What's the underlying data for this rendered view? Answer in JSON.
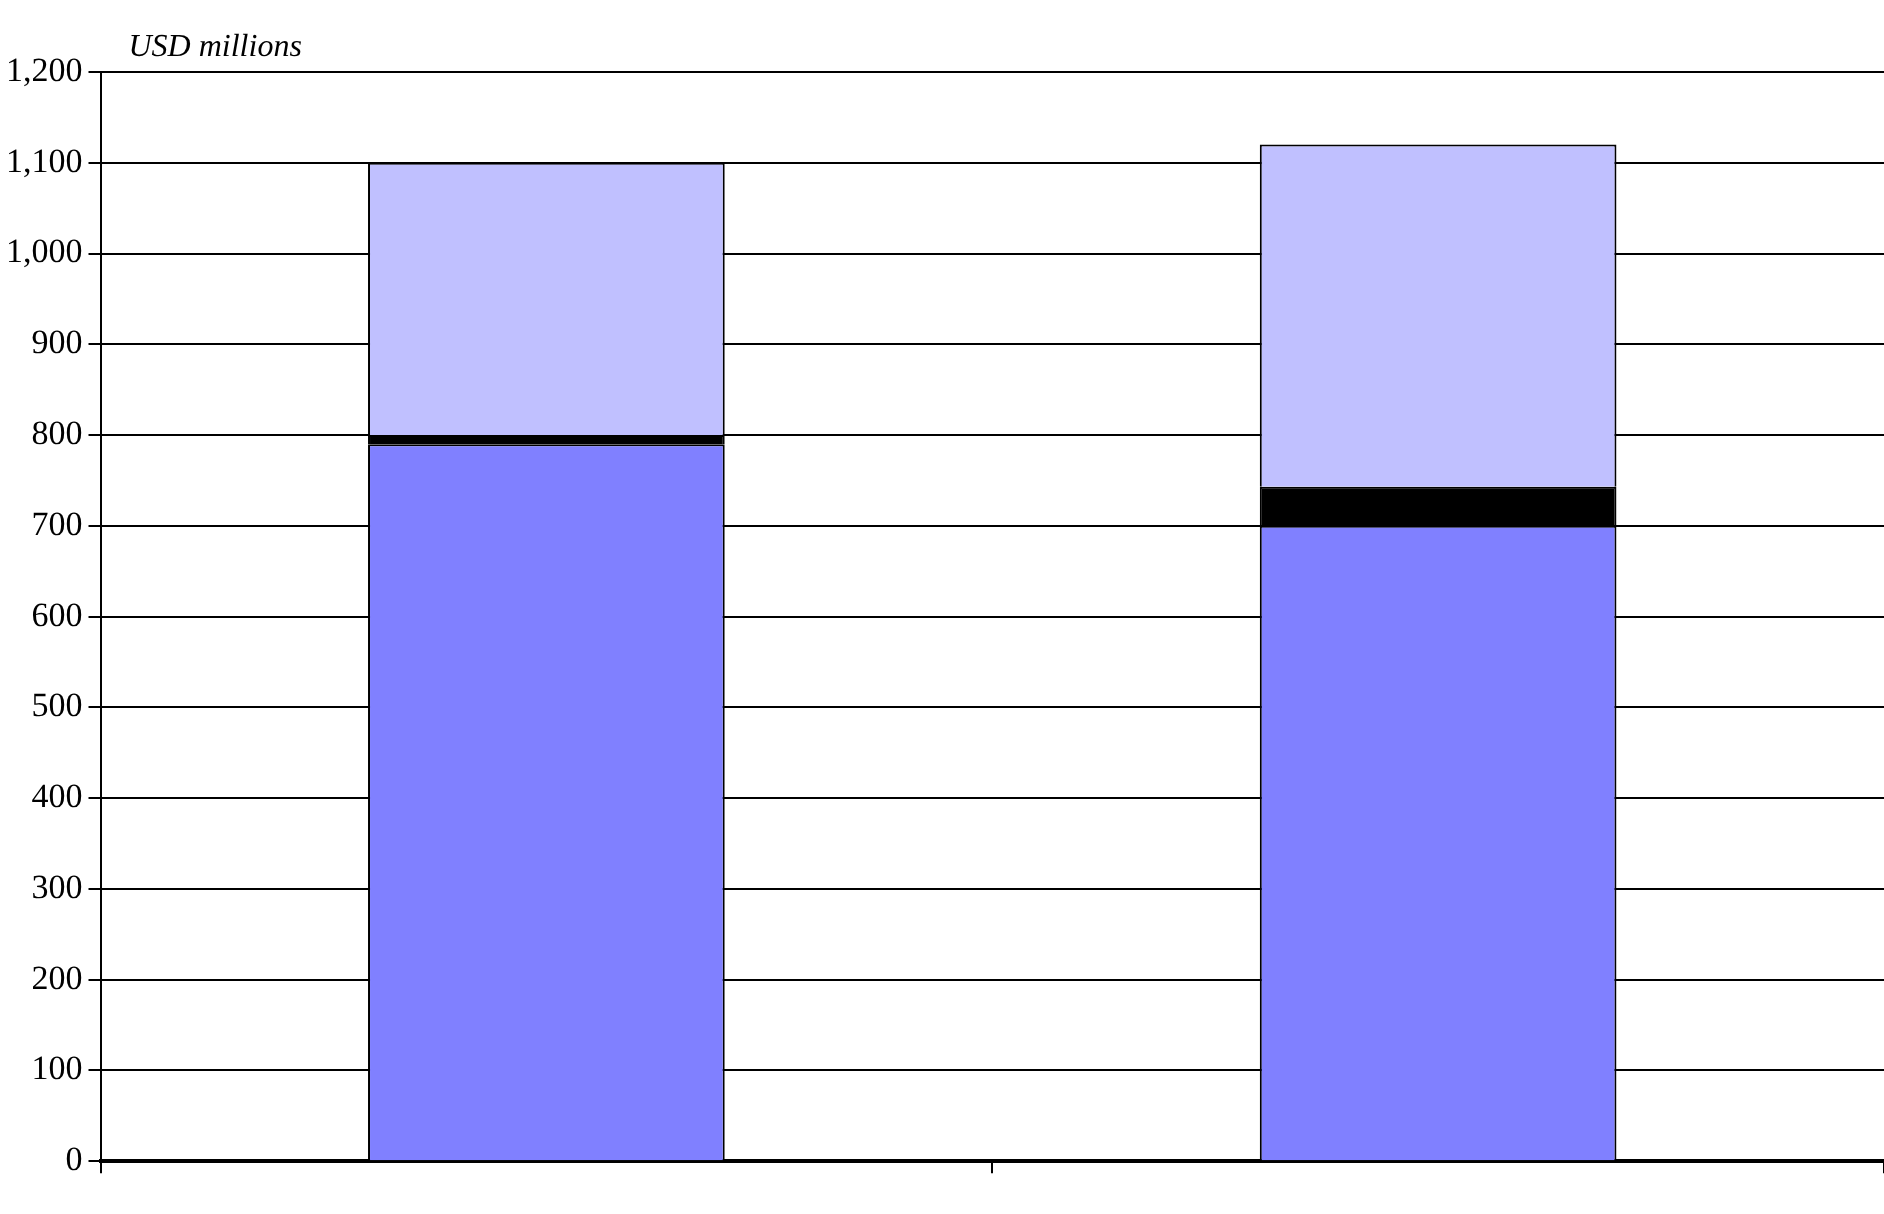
{
  "chart_data": {
    "type": "bar",
    "ylabel": "USD millions",
    "categories": [
      null,
      null
    ],
    "stacked": true,
    "series": [
      {
        "color": "#8080ff",
        "values": [
          790,
          700
        ]
      },
      {
        "color": "#000000",
        "values": [
          10,
          43
        ]
      },
      {
        "color": "#c0c0ff",
        "values": [
          300,
          377
        ]
      }
    ],
    "ylim": [
      0,
      1200
    ],
    "yticks": [
      0,
      {
        "value": 100,
        "label": "100"
      },
      {
        "value": 200,
        "label": "200"
      },
      {
        "value": 300,
        "label": "300"
      },
      {
        "value": 400,
        "label": "400"
      },
      {
        "value": 500,
        "label": "500"
      },
      {
        "value": 600,
        "label": "600"
      },
      {
        "value": 700,
        "label": "700"
      },
      {
        "value": 800,
        "label": "800"
      },
      {
        "value": 900,
        "label": "900"
      },
      {
        "value": 1000,
        "label": "1,000"
      },
      {
        "value": 1100,
        "label": "1,100"
      },
      {
        "value": 1200,
        "label": "1,200"
      }
    ],
    "grid": "y"
  }
}
